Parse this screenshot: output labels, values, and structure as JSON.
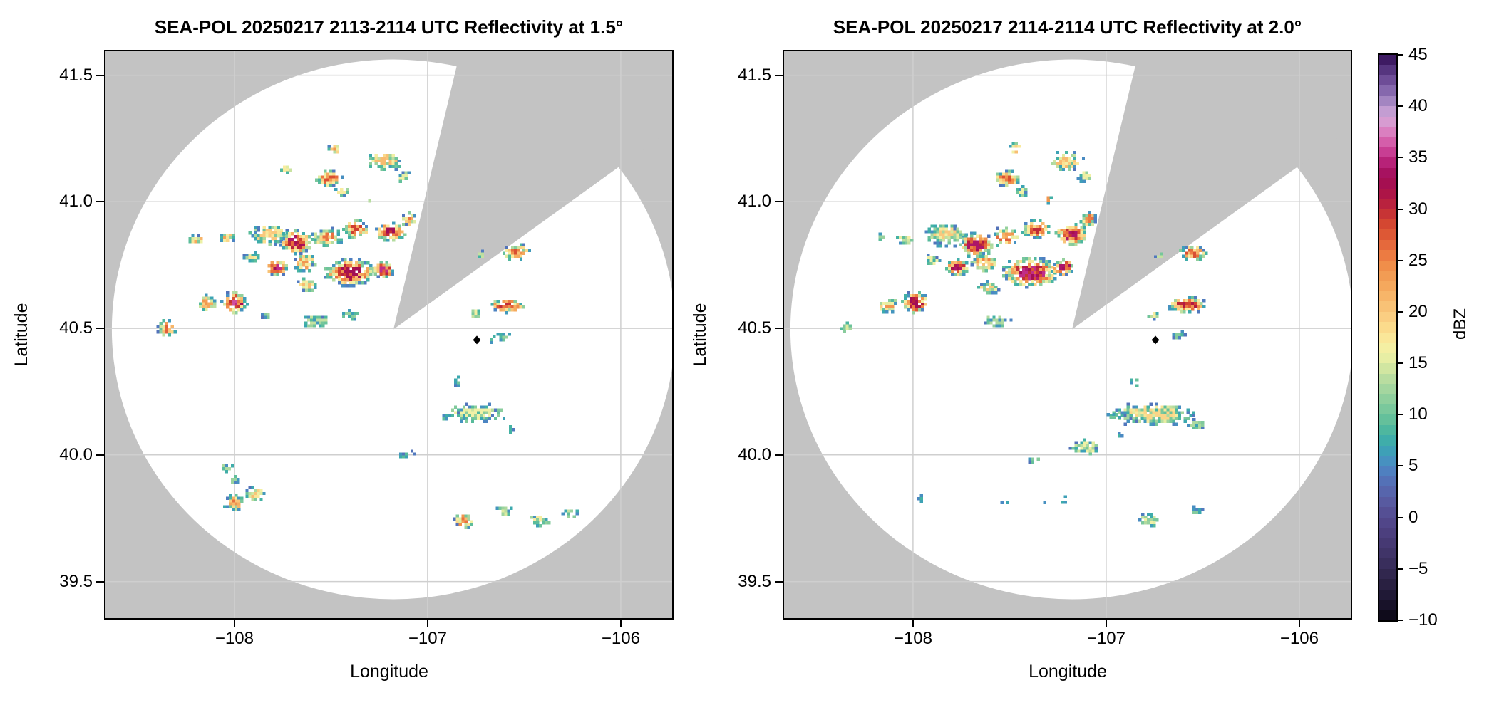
{
  "chart_data": {
    "type": "heatmap",
    "subtype": "radar-ppi-reflectivity",
    "instrument": "SEA-POL",
    "date": "20250217",
    "panels": [
      {
        "title": "SEA-POL 20250217 2113-2114 UTC Reflectivity at 1.5°",
        "time_utc": "2113-2114",
        "elevation_deg": 1.5,
        "cells_format": [
          "lon",
          "lat",
          "dbz_max",
          "width_deg",
          "height_deg"
        ],
        "cells": [
          [
            -107.48,
            41.21,
            26,
            0.06,
            0.04
          ],
          [
            -107.73,
            41.13,
            17,
            0.05,
            0.035
          ],
          [
            -107.51,
            41.09,
            28,
            0.13,
            0.06
          ],
          [
            -107.44,
            41.04,
            17,
            0.07,
            0.04
          ],
          [
            -107.22,
            41.16,
            21,
            0.18,
            0.07
          ],
          [
            -107.12,
            41.1,
            16,
            0.07,
            0.05
          ],
          [
            -107.3,
            41.01,
            20,
            0.03,
            0.03
          ],
          [
            -108.2,
            40.85,
            24,
            0.09,
            0.03
          ],
          [
            -108.04,
            40.86,
            23,
            0.08,
            0.04
          ],
          [
            -107.82,
            40.87,
            20,
            0.2,
            0.08
          ],
          [
            -107.68,
            40.84,
            34,
            0.16,
            0.09
          ],
          [
            -107.52,
            40.86,
            26,
            0.15,
            0.07
          ],
          [
            -107.37,
            40.89,
            29,
            0.13,
            0.07
          ],
          [
            -107.19,
            40.88,
            33,
            0.15,
            0.07
          ],
          [
            -107.1,
            40.93,
            26,
            0.08,
            0.05
          ],
          [
            -107.91,
            40.78,
            18,
            0.08,
            0.04
          ],
          [
            -107.78,
            40.74,
            35,
            0.11,
            0.06
          ],
          [
            -107.64,
            40.76,
            24,
            0.12,
            0.07
          ],
          [
            -107.4,
            40.72,
            33,
            0.26,
            0.1
          ],
          [
            -107.23,
            40.73,
            35,
            0.11,
            0.06
          ],
          [
            -107.62,
            40.67,
            21,
            0.1,
            0.05
          ],
          [
            -108.0,
            40.6,
            36,
            0.13,
            0.08
          ],
          [
            -108.14,
            40.6,
            24,
            0.1,
            0.06
          ],
          [
            -108.35,
            40.5,
            27,
            0.09,
            0.06
          ],
          [
            -107.84,
            40.55,
            14,
            0.06,
            0.03
          ],
          [
            -107.58,
            40.53,
            14,
            0.16,
            0.05
          ],
          [
            -107.39,
            40.55,
            12,
            0.09,
            0.04
          ],
          [
            -106.54,
            40.8,
            28,
            0.13,
            0.06
          ],
          [
            -106.72,
            40.79,
            14,
            0.05,
            0.03
          ],
          [
            -106.59,
            40.59,
            30,
            0.18,
            0.055
          ],
          [
            -106.75,
            40.56,
            17,
            0.06,
            0.04
          ],
          [
            -106.66,
            40.455,
            9,
            0.05,
            0.02
          ],
          [
            -106.6,
            40.47,
            12,
            0.07,
            0.035
          ],
          [
            -106.85,
            40.29,
            10,
            0.04,
            0.035
          ],
          [
            -106.75,
            40.165,
            16,
            0.3,
            0.07
          ],
          [
            -106.92,
            40.15,
            10,
            0.05,
            0.03
          ],
          [
            -106.57,
            40.1,
            8,
            0.03,
            0.02
          ],
          [
            -107.1,
            40.0,
            9,
            0.08,
            0.03
          ],
          [
            -108.04,
            39.95,
            13,
            0.06,
            0.035
          ],
          [
            -108.0,
            39.9,
            12,
            0.05,
            0.03
          ],
          [
            -108.0,
            39.81,
            26,
            0.1,
            0.06
          ],
          [
            -107.89,
            39.845,
            21,
            0.09,
            0.05
          ],
          [
            -106.81,
            39.74,
            26,
            0.1,
            0.06
          ],
          [
            -106.6,
            39.78,
            15,
            0.08,
            0.04
          ],
          [
            -106.42,
            39.74,
            17,
            0.11,
            0.05
          ],
          [
            -106.26,
            39.77,
            14,
            0.08,
            0.04
          ]
        ]
      },
      {
        "title": "SEA-POL 20250217 2114-2114 UTC Reflectivity at 2.0°",
        "time_utc": "2114-2114",
        "elevation_deg": 2.0,
        "cells_format": [
          "lon",
          "lat",
          "dbz_max",
          "width_deg",
          "height_deg"
        ],
        "cells": [
          [
            -107.47,
            41.21,
            26,
            0.05,
            0.04
          ],
          [
            -107.51,
            41.09,
            28,
            0.13,
            0.06
          ],
          [
            -107.44,
            41.04,
            16,
            0.07,
            0.04
          ],
          [
            -107.21,
            41.16,
            21,
            0.17,
            0.07
          ],
          [
            -107.11,
            41.1,
            16,
            0.07,
            0.05
          ],
          [
            -107.3,
            41.01,
            24,
            0.03,
            0.035
          ],
          [
            -108.16,
            40.86,
            12,
            0.05,
            0.025
          ],
          [
            -108.04,
            40.85,
            20,
            0.08,
            0.04
          ],
          [
            -107.83,
            40.87,
            20,
            0.2,
            0.09
          ],
          [
            -107.67,
            40.83,
            34,
            0.17,
            0.09
          ],
          [
            -107.52,
            40.86,
            27,
            0.14,
            0.07
          ],
          [
            -107.36,
            40.89,
            30,
            0.14,
            0.07
          ],
          [
            -107.18,
            40.87,
            34,
            0.16,
            0.08
          ],
          [
            -107.09,
            40.93,
            26,
            0.08,
            0.05
          ],
          [
            -107.9,
            40.77,
            16,
            0.07,
            0.04
          ],
          [
            -107.77,
            40.74,
            34,
            0.11,
            0.06
          ],
          [
            -107.63,
            40.76,
            25,
            0.13,
            0.07
          ],
          [
            -107.39,
            40.72,
            35,
            0.28,
            0.11
          ],
          [
            -107.22,
            40.74,
            34,
            0.12,
            0.06
          ],
          [
            -107.61,
            40.66,
            20,
            0.1,
            0.05
          ],
          [
            -107.99,
            40.6,
            33,
            0.13,
            0.08
          ],
          [
            -108.13,
            40.59,
            24,
            0.1,
            0.06
          ],
          [
            -108.34,
            40.5,
            15,
            0.06,
            0.04
          ],
          [
            -107.57,
            40.53,
            13,
            0.14,
            0.05
          ],
          [
            -106.55,
            40.8,
            28,
            0.13,
            0.06
          ],
          [
            -106.72,
            40.79,
            14,
            0.05,
            0.03
          ],
          [
            -106.58,
            40.59,
            31,
            0.18,
            0.06
          ],
          [
            -106.75,
            40.55,
            17,
            0.06,
            0.04
          ],
          [
            -106.63,
            40.47,
            11,
            0.07,
            0.03
          ],
          [
            -106.85,
            40.29,
            10,
            0.04,
            0.035
          ],
          [
            -106.76,
            40.16,
            19,
            0.4,
            0.08
          ],
          [
            -106.96,
            40.155,
            10,
            0.06,
            0.03
          ],
          [
            -106.93,
            40.075,
            8,
            0.035,
            0.02
          ],
          [
            -106.53,
            40.12,
            13,
            0.09,
            0.04
          ],
          [
            -107.1,
            40.03,
            16,
            0.14,
            0.06
          ],
          [
            -107.37,
            39.98,
            11,
            0.05,
            0.03
          ],
          [
            -107.52,
            39.81,
            10,
            0.04,
            0.025
          ],
          [
            -107.33,
            39.81,
            10,
            0.035,
            0.025
          ],
          [
            -107.22,
            39.82,
            11,
            0.04,
            0.03
          ],
          [
            -107.97,
            39.83,
            12,
            0.06,
            0.04
          ],
          [
            -106.78,
            39.74,
            16,
            0.09,
            0.05
          ],
          [
            -106.53,
            39.78,
            11,
            0.06,
            0.03
          ]
        ]
      }
    ],
    "axes": {
      "xlabel": "Longitude",
      "ylabel": "Latitude",
      "xlim": [
        -108.675,
        -105.727
      ],
      "ylim": [
        39.35,
        41.6
      ],
      "xticks": {
        "values": [
          -108,
          -107,
          -106
        ],
        "labels": [
          "−108",
          "−107",
          "−106"
        ]
      },
      "yticks": {
        "values": [
          41.5,
          41.0,
          40.5,
          40.0,
          39.5
        ],
        "labels": [
          "41.5",
          "41.0",
          "40.5",
          "40.0",
          "39.5"
        ]
      },
      "grid": true
    },
    "colorbar": {
      "label": "dBZ",
      "min": -10,
      "max": 45,
      "ticks": {
        "values": [
          45,
          40,
          35,
          30,
          25,
          20,
          15,
          10,
          5,
          0,
          -5,
          -10
        ],
        "labels": [
          "45",
          "40",
          "35",
          "30",
          "25",
          "20",
          "15",
          "10",
          "5",
          "0",
          "−5",
          "−10"
        ]
      },
      "stops": [
        [
          -10,
          "#0a0814"
        ],
        [
          -8,
          "#1c1530"
        ],
        [
          -6,
          "#2d2347"
        ],
        [
          -4,
          "#3d3163"
        ],
        [
          -2,
          "#493c78"
        ],
        [
          0,
          "#53498e"
        ],
        [
          2,
          "#595fa6"
        ],
        [
          4,
          "#5277bd"
        ],
        [
          5,
          "#4b88c3"
        ],
        [
          6,
          "#4299bd"
        ],
        [
          7,
          "#3aa7b0"
        ],
        [
          8,
          "#44b2a3"
        ],
        [
          9,
          "#57bb9b"
        ],
        [
          10,
          "#70c49b"
        ],
        [
          12,
          "#99d29e"
        ],
        [
          14,
          "#c4e1a1"
        ],
        [
          15,
          "#deeba1"
        ],
        [
          16,
          "#f0f1a6"
        ],
        [
          17,
          "#f8eca0"
        ],
        [
          18,
          "#fbe191"
        ],
        [
          20,
          "#f9c87d"
        ],
        [
          22,
          "#f6ae62"
        ],
        [
          24,
          "#f1964f"
        ],
        [
          25,
          "#ee8545"
        ],
        [
          26,
          "#e9713f"
        ],
        [
          28,
          "#d94f32"
        ],
        [
          29,
          "#cf3e30"
        ],
        [
          30,
          "#bf2a39"
        ],
        [
          31,
          "#b21942"
        ],
        [
          32,
          "#a8104c"
        ],
        [
          33,
          "#a20d56"
        ],
        [
          34,
          "#ac1669"
        ],
        [
          35,
          "#c12d87"
        ],
        [
          36,
          "#cf4f9f"
        ],
        [
          37,
          "#d96db5"
        ],
        [
          38,
          "#db90ca"
        ],
        [
          39,
          "#d2a7d8"
        ],
        [
          40,
          "#b392cb"
        ],
        [
          41,
          "#9377b7"
        ],
        [
          42,
          "#7959a2"
        ],
        [
          43,
          "#62408b"
        ],
        [
          44,
          "#4a2973"
        ],
        [
          45,
          "#320c52"
        ]
      ]
    },
    "radar": {
      "coverage_center": [
        -107.177,
        40.496
      ],
      "coverage_radius_deg": {
        "lon": 1.458,
        "lat": 1.066
      },
      "blocked_sector_azimuth_deg": [
        13.5,
        54.2
      ],
      "site_marker": [
        -106.745,
        40.454
      ]
    },
    "colors": {
      "masked_region": "#c3c3c3",
      "coverage_background": "#ffffff",
      "gridline": "#cfcfcf",
      "frame": "#000000",
      "site_marker": "#000000"
    }
  }
}
